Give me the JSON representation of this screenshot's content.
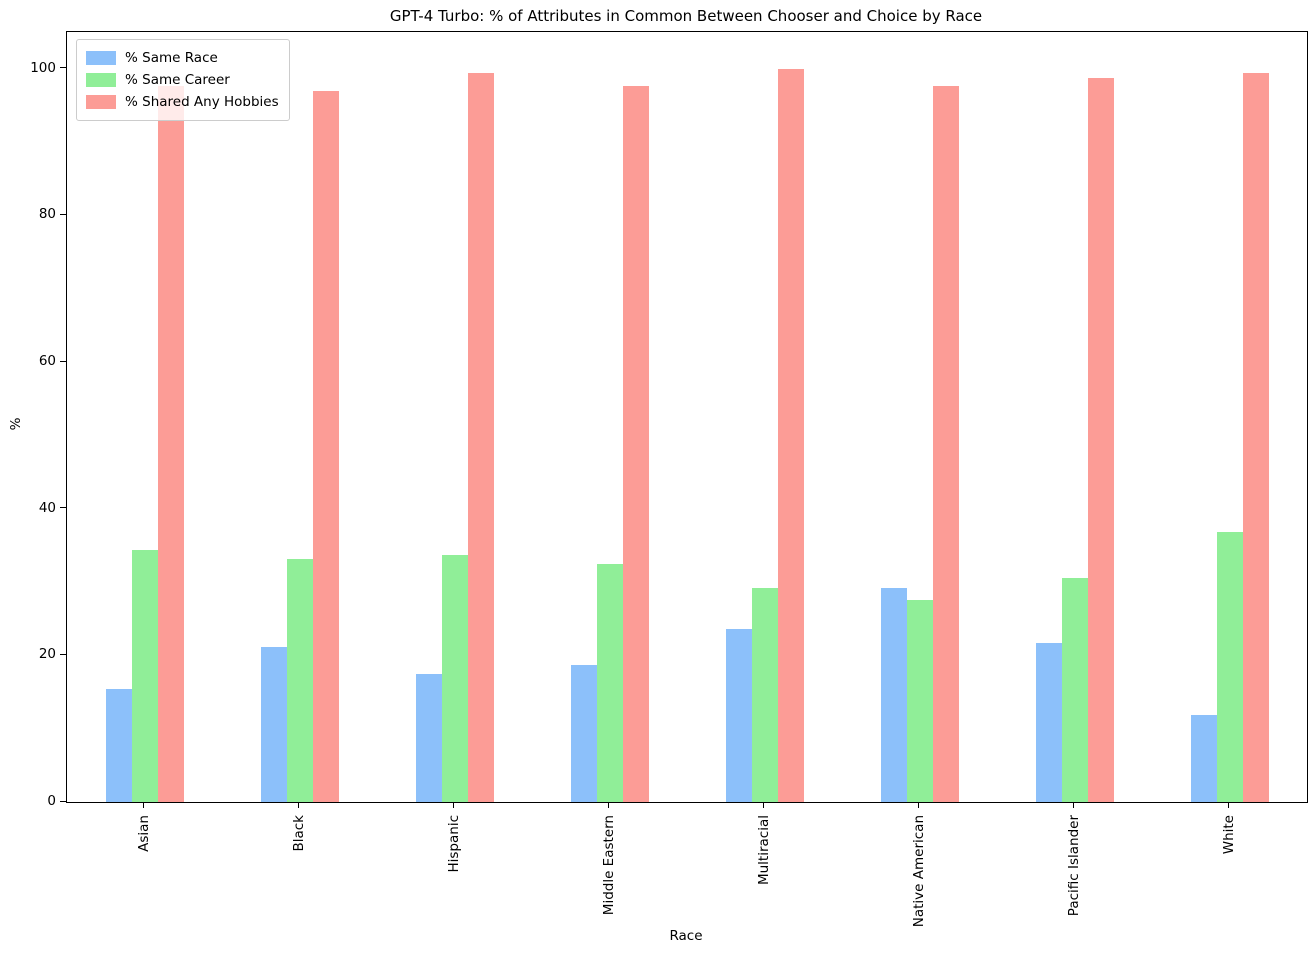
{
  "chart_data": {
    "type": "bar",
    "title": "GPT-4 Turbo: % of Attributes in Common Between Chooser and Choice by Race",
    "xlabel": "Race",
    "ylabel": "%",
    "categories": [
      "Asian",
      "Black",
      "Hispanic",
      "Middle Eastern",
      "Multiracial",
      "Native American",
      "Pacific Islander",
      "White"
    ],
    "series": [
      {
        "name": "% Same Race",
        "color": "#8CC0FA",
        "values": [
          15.4,
          21.2,
          17.4,
          18.7,
          23.6,
          29.2,
          21.7,
          11.9
        ]
      },
      {
        "name": "% Same Career",
        "color": "#90EE98",
        "values": [
          34.3,
          33.1,
          33.7,
          32.5,
          29.2,
          27.5,
          30.5,
          36.8
        ]
      },
      {
        "name": "% Shared Any Hobbies",
        "color": "#FC9C96",
        "values": [
          97.7,
          96.9,
          99.4,
          97.6,
          100.0,
          97.6,
          98.7,
          99.4
        ]
      }
    ],
    "yticks": [
      0,
      20,
      40,
      60,
      80,
      100
    ],
    "ylim": [
      0,
      105
    ],
    "grid": false,
    "legend_position": "upper-left",
    "axis_color": "#000000",
    "background_color": "#ffffff"
  }
}
